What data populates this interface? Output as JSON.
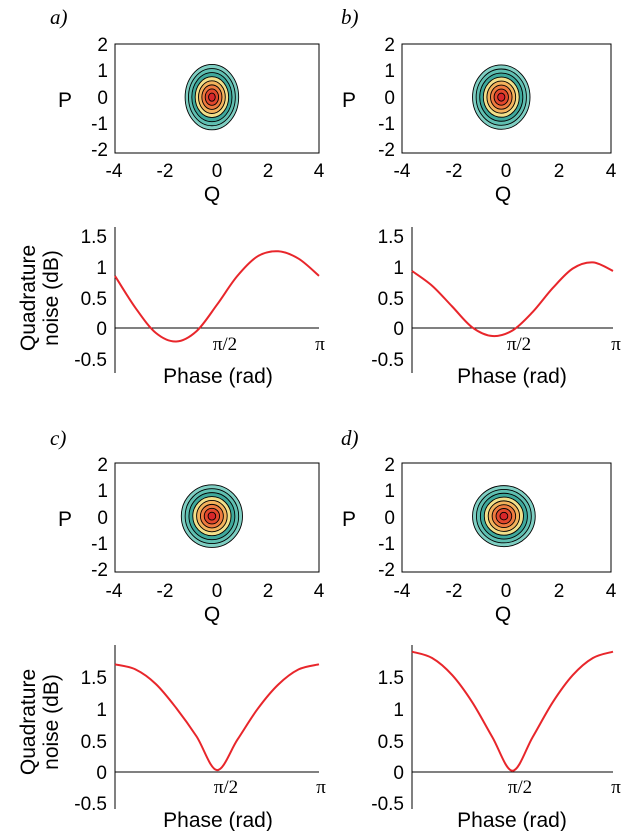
{
  "colors": {
    "curve": "#e8262b",
    "contour_fill_levels": [
      "#7fcfc3",
      "#5fbfb1",
      "#3ea89b",
      "#f2e08a",
      "#f3b25c",
      "#ee7a3f",
      "#e2472d",
      "#d7262a"
    ],
    "contour_line": "#000000"
  },
  "panels": [
    {
      "letter": "a)",
      "wigner": {
        "xlabel": "Q",
        "ylabel": "P",
        "xticks": [
          "-4",
          "-2",
          "0",
          "2",
          "4"
        ],
        "yticks": [
          "2",
          "1",
          "0",
          "-1",
          "-2"
        ],
        "xlim": [
          -4,
          4
        ],
        "ylim": [
          -2,
          2
        ],
        "center": [
          -0.2,
          0.05
        ],
        "radii": [
          1.05,
          1.2
        ],
        "levels": 8
      },
      "noise": {
        "ylabel_line1": "Quadrature",
        "ylabel_line2": "noise (dB)",
        "xlabel": "Phase (rad)",
        "yticks": [
          "1.5",
          "1",
          "0.5",
          "0",
          "-0.5"
        ],
        "ytick_values": [
          1.5,
          1,
          0.5,
          0,
          -0.5
        ],
        "xticks": [
          "π/2",
          "π"
        ],
        "ylim": [
          -0.65,
          1.65
        ]
      }
    },
    {
      "letter": "b)",
      "wigner": {
        "xlabel": "Q",
        "ylabel": "P",
        "xticks": [
          "-4",
          "-2",
          "0",
          "2",
          "4"
        ],
        "yticks": [
          "2",
          "1",
          "0",
          "-1",
          "-2"
        ],
        "xlim": [
          -4,
          4
        ],
        "ylim": [
          -2,
          2
        ],
        "center": [
          -0.2,
          0.05
        ],
        "radii": [
          1.1,
          1.18
        ],
        "levels": 8
      },
      "noise": {
        "ylabel_line1": "",
        "ylabel_line2": "",
        "xlabel": "Phase (rad)",
        "yticks": [
          "1.5",
          "1",
          "0.5",
          "0",
          "-0.5"
        ],
        "ytick_values": [
          1.5,
          1,
          0.5,
          0,
          -0.5
        ],
        "xticks": [
          "π/2",
          "π"
        ],
        "ylim": [
          -0.65,
          1.65
        ]
      }
    },
    {
      "letter": "c)",
      "wigner": {
        "xlabel": "Q",
        "ylabel": "P",
        "xticks": [
          "-4",
          "-2",
          "0",
          "2",
          "4"
        ],
        "yticks": [
          "2",
          "1",
          "0",
          "-1",
          "-2"
        ],
        "xlim": [
          -4,
          4
        ],
        "ylim": [
          -2,
          2
        ],
        "center": [
          -0.2,
          0.05
        ],
        "radii": [
          1.2,
          1.15
        ],
        "levels": 8
      },
      "noise": {
        "ylabel_line1": "Quadrature",
        "ylabel_line2": "noise (dB)",
        "xlabel": "Phase (rad)",
        "yticks": [
          "1.5",
          "1",
          "0.5",
          "0",
          "-0.5"
        ],
        "ytick_values": [
          1.5,
          1,
          0.5,
          0,
          -0.5
        ],
        "xticks": [
          "π/2",
          "π"
        ],
        "ylim": [
          -0.55,
          1.85
        ]
      }
    },
    {
      "letter": "d)",
      "wigner": {
        "xlabel": "Q",
        "ylabel": "P",
        "xticks": [
          "-4",
          "-2",
          "0",
          "2",
          "4"
        ],
        "yticks": [
          "2",
          "1",
          "0",
          "-1",
          "-2"
        ],
        "xlim": [
          -4,
          4
        ],
        "ylim": [
          -2,
          2
        ],
        "center": [
          -0.1,
          0.05
        ],
        "radii": [
          1.2,
          1.12
        ],
        "levels": 8
      },
      "noise": {
        "ylabel_line1": "",
        "ylabel_line2": "",
        "xlabel": "Phase (rad)",
        "yticks": [
          "1.5",
          "1",
          "0.5",
          "0",
          "-0.5"
        ],
        "ytick_values": [
          1.5,
          1,
          0.5,
          0,
          -0.5
        ],
        "xticks": [
          "π/2",
          "π"
        ],
        "ylim": [
          -0.55,
          1.95
        ]
      }
    }
  ],
  "chart_data": [
    {
      "type": "line",
      "panel": "a",
      "xlabel": "Phase (rad)",
      "ylabel": "Quadrature noise (dB)",
      "xlim": [
        0,
        3.1416
      ],
      "x": [
        0,
        0.314,
        0.628,
        0.942,
        1.257,
        1.571,
        1.885,
        2.199,
        2.513,
        2.827,
        3.142
      ],
      "y": [
        0.85,
        0.33,
        -0.08,
        -0.22,
        -0.05,
        0.38,
        0.85,
        1.17,
        1.25,
        1.13,
        0.85
      ]
    },
    {
      "type": "line",
      "panel": "b",
      "xlabel": "Phase (rad)",
      "ylabel": "",
      "xlim": [
        0,
        3.1416
      ],
      "x": [
        0,
        0.314,
        0.628,
        0.942,
        1.257,
        1.571,
        1.885,
        2.199,
        2.513,
        2.827,
        3.142
      ],
      "y": [
        0.93,
        0.69,
        0.35,
        0.01,
        -0.13,
        -0.04,
        0.26,
        0.65,
        0.97,
        1.07,
        0.93
      ]
    },
    {
      "type": "line",
      "panel": "c",
      "xlabel": "Phase (rad)",
      "ylabel": "Quadrature noise (dB)",
      "xlim": [
        0,
        3.1416
      ],
      "x": [
        0,
        0.314,
        0.628,
        0.942,
        1.257,
        1.571,
        1.885,
        2.199,
        2.513,
        2.827,
        3.142
      ],
      "y": [
        1.7,
        1.62,
        1.39,
        1.01,
        0.56,
        0.03,
        0.51,
        1.0,
        1.38,
        1.62,
        1.7
      ]
    },
    {
      "type": "line",
      "panel": "d",
      "xlabel": "Phase (rad)",
      "ylabel": "",
      "xlim": [
        0,
        3.1416
      ],
      "x": [
        0,
        0.314,
        0.628,
        0.942,
        1.257,
        1.571,
        1.885,
        2.199,
        2.513,
        2.827,
        3.142
      ],
      "y": [
        1.9,
        1.8,
        1.53,
        1.1,
        0.55,
        0.02,
        0.55,
        1.1,
        1.53,
        1.8,
        1.9
      ]
    }
  ]
}
